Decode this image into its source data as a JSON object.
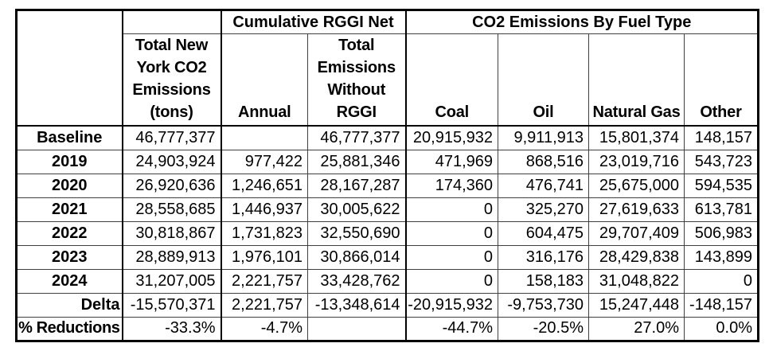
{
  "table": {
    "corner": "",
    "groups": [
      {
        "label": "Cumulative RGGI Net"
      },
      {
        "label": "CO2 Emissions By Fuel Type"
      }
    ],
    "col_headers": [
      "Total New\nYork CO2\nEmissions\n(tons)",
      "Annual",
      "Total\nEmissions\nWithout\nRGGI",
      "Coal",
      "Oil",
      "Natural Gas",
      "Other"
    ],
    "rows": [
      {
        "label": "Baseline",
        "cells": [
          "46,777,377",
          "",
          "46,777,377",
          "20,915,932",
          "9,911,913",
          "15,801,374",
          "148,157"
        ]
      },
      {
        "label": "2019",
        "cells": [
          "24,903,924",
          "977,422",
          "25,881,346",
          "471,969",
          "868,516",
          "23,019,716",
          "543,723"
        ]
      },
      {
        "label": "2020",
        "cells": [
          "26,920,636",
          "1,246,651",
          "28,167,287",
          "174,360",
          "476,741",
          "25,675,000",
          "594,535"
        ]
      },
      {
        "label": "2021",
        "cells": [
          "28,558,685",
          "1,446,937",
          "30,005,622",
          "0",
          "325,270",
          "27,619,633",
          "613,781"
        ]
      },
      {
        "label": "2022",
        "cells": [
          "30,818,867",
          "1,731,823",
          "32,550,690",
          "0",
          "604,475",
          "29,707,409",
          "506,983"
        ]
      },
      {
        "label": "2023",
        "cells": [
          "28,889,913",
          "1,976,101",
          "30,866,014",
          "0",
          "316,176",
          "28,429,838",
          "143,899"
        ]
      },
      {
        "label": "2024",
        "cells": [
          "31,207,005",
          "2,221,757",
          "33,428,762",
          "0",
          "158,183",
          "31,048,822",
          "0"
        ]
      },
      {
        "label": "Delta",
        "cells": [
          "-15,570,371",
          "2,221,757",
          "-13,348,614",
          "-20,915,932",
          "-9,753,730",
          "15,247,448",
          "-148,157"
        ]
      },
      {
        "label": "% Reductions",
        "cells": [
          "-33.3%",
          "-4.7%",
          "",
          "-44.7%",
          "-20.5%",
          "27.0%",
          "0.0%"
        ]
      }
    ]
  },
  "chart_data": {
    "type": "table",
    "title": "",
    "column_groups": [
      {
        "label": "Cumulative RGGI Net",
        "columns": [
          "Annual",
          "Total Emissions Without RGGI"
        ]
      },
      {
        "label": "CO2 Emissions By Fuel Type",
        "columns": [
          "Coal",
          "Oil",
          "Natural Gas",
          "Other"
        ]
      }
    ],
    "columns": [
      "Total New York CO2 Emissions (tons)",
      "Annual",
      "Total Emissions Without RGGI",
      "Coal",
      "Oil",
      "Natural Gas",
      "Other"
    ],
    "row_labels": [
      "Baseline",
      "2019",
      "2020",
      "2021",
      "2022",
      "2023",
      "2024",
      "Delta",
      "% Reductions"
    ],
    "rows": [
      [
        46777377,
        null,
        46777377,
        20915932,
        9911913,
        15801374,
        148157
      ],
      [
        24903924,
        977422,
        25881346,
        471969,
        868516,
        23019716,
        543723
      ],
      [
        26920636,
        1246651,
        28167287,
        174360,
        476741,
        25675000,
        594535
      ],
      [
        28558685,
        1446937,
        30005622,
        0,
        325270,
        27619633,
        613781
      ],
      [
        30818867,
        1731823,
        32550690,
        0,
        604475,
        29707409,
        506983
      ],
      [
        28889913,
        1976101,
        30866014,
        0,
        316176,
        28429838,
        143899
      ],
      [
        31207005,
        2221757,
        33428762,
        0,
        158183,
        31048822,
        0
      ],
      [
        -15570371,
        2221757,
        -13348614,
        -20915932,
        -9753730,
        15247448,
        -148157
      ],
      [
        "-33.3%",
        "-4.7%",
        null,
        "-44.7%",
        "-20.5%",
        "27.0%",
        "0.0%"
      ]
    ]
  }
}
